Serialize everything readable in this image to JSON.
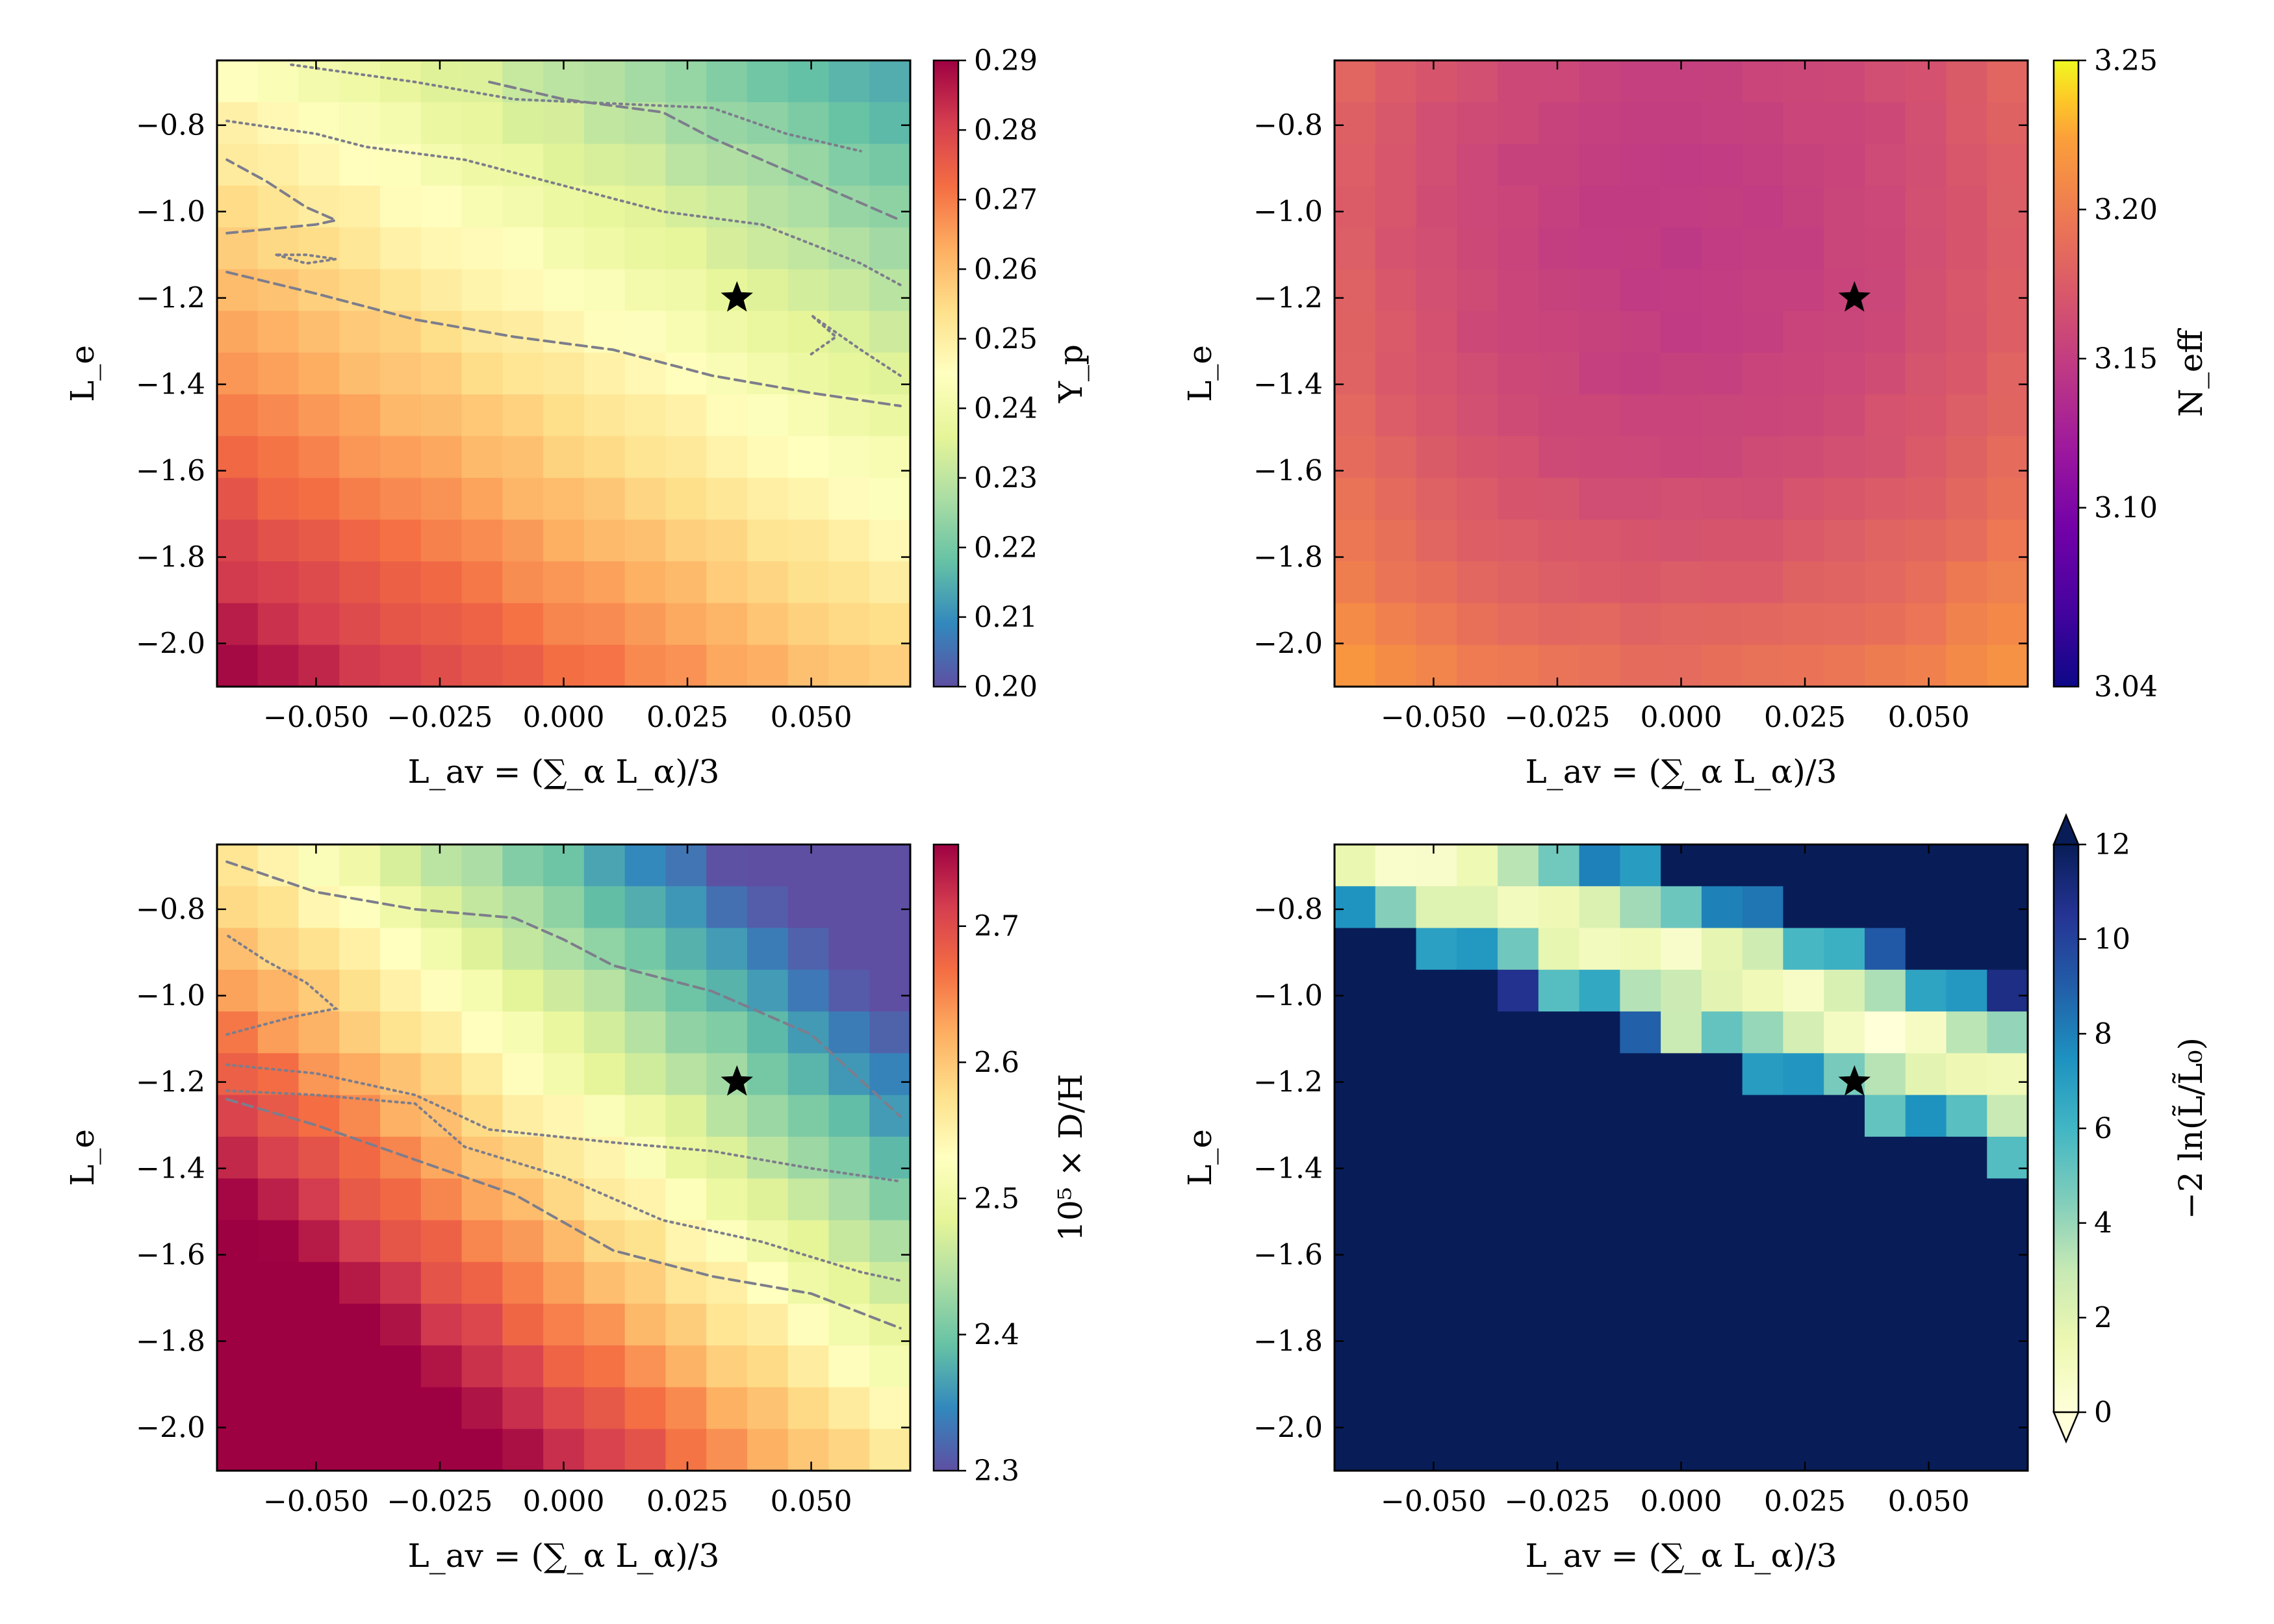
{
  "figure": {
    "star_marker": {
      "x": 0.035,
      "y": -1.2
    }
  },
  "chart_data": [
    {
      "type": "heatmap",
      "name": "yp",
      "xlabel": "L_av = (∑_α L_α)/3",
      "ylabel": "L_e",
      "colorbar_label": "Y_p",
      "cmap": "spectral",
      "clim": [
        0.2,
        0.29
      ],
      "colorbar_ticks": [
        0.2,
        0.21,
        0.22,
        0.23,
        0.24,
        0.25,
        0.26,
        0.27,
        0.28,
        0.29
      ],
      "colorbar_tick_labels": [
        "0.20",
        "0.21",
        "0.22",
        "0.23",
        "0.24",
        "0.25",
        "0.26",
        "0.27",
        "0.28",
        "0.29"
      ],
      "x_range": [
        -0.07,
        0.07
      ],
      "y_range": [
        -2.1,
        -0.65
      ],
      "x_ticks": [
        -0.05,
        -0.025,
        0.0,
        0.025,
        0.05
      ],
      "x_tick_labels": [
        "−0.050",
        "−0.025",
        "0.000",
        "0.025",
        "0.050"
      ],
      "y_ticks": [
        -0.8,
        -1.0,
        -1.2,
        -1.4,
        -1.6,
        -1.8,
        -2.0
      ],
      "y_tick_labels": [
        "−0.8",
        "−1.0",
        "−1.2",
        "−1.4",
        "−1.6",
        "−1.8",
        "−2.0"
      ],
      "grid_cols": 17,
      "grid_rows": 15,
      "model": {
        "form": "linear",
        "a": 0.2455,
        "b": -0.24,
        "c": -0.0315,
        "y0": -1.2,
        "noise": 0.0008,
        "clip": [
          0.2,
          0.29
        ]
      },
      "contours": [
        {
          "style": "dashed",
          "points": [
            [
              -0.068,
              -1.05
            ],
            [
              -0.05,
              -1.03
            ],
            [
              -0.046,
              -1.02
            ],
            [
              -0.052,
              -0.99
            ],
            [
              -0.06,
              -0.93
            ],
            [
              -0.068,
              -0.88
            ]
          ]
        },
        {
          "style": "dashed",
          "points": [
            [
              -0.068,
              -1.14
            ],
            [
              -0.05,
              -1.19
            ],
            [
              -0.03,
              -1.25
            ],
            [
              -0.01,
              -1.29
            ],
            [
              0.01,
              -1.32
            ],
            [
              0.03,
              -1.38
            ],
            [
              0.05,
              -1.42
            ],
            [
              0.068,
              -1.45
            ]
          ]
        },
        {
          "style": "dashed",
          "points": [
            [
              -0.015,
              -0.7
            ],
            [
              0.0,
              -0.74
            ],
            [
              0.02,
              -0.77
            ],
            [
              0.03,
              -0.83
            ],
            [
              0.04,
              -0.88
            ],
            [
              0.06,
              -0.98
            ],
            [
              0.068,
              -1.02
            ]
          ]
        },
        {
          "style": "dotted",
          "points": [
            [
              -0.058,
              -1.1
            ],
            [
              -0.052,
              -1.12
            ],
            [
              -0.046,
              -1.11
            ],
            [
              -0.052,
              -1.1
            ],
            [
              -0.058,
              -1.1
            ]
          ]
        },
        {
          "style": "dotted",
          "points": [
            [
              -0.068,
              -0.79
            ],
            [
              -0.05,
              -0.82
            ],
            [
              -0.04,
              -0.85
            ],
            [
              -0.02,
              -0.88
            ],
            [
              0.0,
              -0.94
            ],
            [
              0.02,
              -1.0
            ],
            [
              0.04,
              -1.03
            ],
            [
              0.06,
              -1.12
            ],
            [
              0.068,
              -1.17
            ]
          ]
        },
        {
          "style": "dotted",
          "points": [
            [
              -0.055,
              -0.66
            ],
            [
              -0.03,
              -0.7
            ],
            [
              -0.01,
              -0.74
            ],
            [
              0.03,
              -0.76
            ],
            [
              0.045,
              -0.82
            ],
            [
              0.06,
              -0.86
            ]
          ]
        },
        {
          "style": "dotted",
          "points": [
            [
              0.05,
              -1.33
            ],
            [
              0.055,
              -1.29
            ],
            [
              0.05,
              -1.24
            ],
            [
              0.06,
              -1.32
            ],
            [
              0.068,
              -1.38
            ]
          ]
        }
      ]
    },
    {
      "type": "heatmap",
      "name": "neff",
      "xlabel": "L_av = (∑_α L_α)/3",
      "ylabel": "L_e",
      "colorbar_label": "N_eff",
      "cmap": "plasma",
      "clim": [
        3.04,
        3.25
      ],
      "colorbar_ticks": [
        3.1,
        3.15,
        3.2,
        3.25
      ],
      "colorbar_tick_labels": [
        "3.10",
        "3.15",
        "3.20",
        "3.25"
      ],
      "colorbar_bottom_label": "3.04",
      "x_range": [
        -0.07,
        0.07
      ],
      "y_range": [
        -2.1,
        -0.65
      ],
      "x_ticks": [
        -0.05,
        -0.025,
        0.0,
        0.025,
        0.05
      ],
      "x_tick_labels": [
        "−0.050",
        "−0.025",
        "0.000",
        "0.025",
        "0.050"
      ],
      "y_ticks": [
        -0.8,
        -1.0,
        -1.2,
        -1.4,
        -1.6,
        -1.8,
        -2.0
      ],
      "y_tick_labels": [
        "−0.8",
        "−1.0",
        "−1.2",
        "−1.4",
        "−1.6",
        "−1.8",
        "−2.0"
      ],
      "grid_cols": 17,
      "grid_rows": 15,
      "model": {
        "form": "bowl",
        "base": 3.148,
        "qy": 0.04,
        "y0": -1.05,
        "qx": 6.5,
        "noise": 0.002,
        "clip": [
          3.13,
          3.25
        ]
      },
      "contours": []
    },
    {
      "type": "heatmap",
      "name": "dh",
      "xlabel": "L_av = (∑_α L_α)/3",
      "ylabel": "L_e",
      "colorbar_label": "10⁵ × D/H",
      "cmap": "spectral",
      "clim": [
        2.3,
        2.76
      ],
      "colorbar_ticks": [
        2.3,
        2.4,
        2.5,
        2.6,
        2.7
      ],
      "colorbar_tick_labels": [
        "2.3",
        "2.4",
        "2.5",
        "2.6",
        "2.7"
      ],
      "x_range": [
        -0.07,
        0.07
      ],
      "y_range": [
        -2.1,
        -0.65
      ],
      "x_ticks": [
        -0.05,
        -0.025,
        0.0,
        0.025,
        0.05
      ],
      "x_tick_labels": [
        "−0.050",
        "−0.025",
        "0.000",
        "0.025",
        "0.050"
      ],
      "y_ticks": [
        -0.8,
        -1.0,
        -1.2,
        -1.4,
        -1.6,
        -1.8,
        -2.0
      ],
      "y_tick_labels": [
        "−0.8",
        "−1.0",
        "−1.2",
        "−1.4",
        "−1.6",
        "−1.8",
        "−2.0"
      ],
      "grid_cols": 17,
      "grid_rows": 15,
      "model": {
        "form": "linear",
        "a": 2.53,
        "b": -2.6,
        "c": -0.25,
        "y0": -1.25,
        "noise": 0.006,
        "clip": [
          2.3,
          2.76
        ]
      },
      "contours": [
        {
          "style": "dashed",
          "points": [
            [
              -0.068,
              -0.69
            ],
            [
              -0.05,
              -0.76
            ],
            [
              -0.03,
              -0.8
            ],
            [
              -0.01,
              -0.82
            ],
            [
              0.0,
              -0.87
            ],
            [
              0.01,
              -0.93
            ],
            [
              0.03,
              -0.99
            ],
            [
              0.05,
              -1.09
            ],
            [
              0.068,
              -1.28
            ]
          ]
        },
        {
          "style": "dashed",
          "points": [
            [
              -0.068,
              -1.24
            ],
            [
              -0.05,
              -1.3
            ],
            [
              -0.03,
              -1.38
            ],
            [
              -0.01,
              -1.46
            ],
            [
              0.01,
              -1.59
            ],
            [
              0.03,
              -1.65
            ],
            [
              0.05,
              -1.69
            ],
            [
              0.068,
              -1.77
            ]
          ]
        },
        {
          "style": "dotted",
          "points": [
            [
              -0.068,
              -1.09
            ],
            [
              -0.055,
              -1.05
            ],
            [
              -0.046,
              -1.03
            ],
            [
              -0.052,
              -0.97
            ],
            [
              -0.06,
              -0.92
            ],
            [
              -0.068,
              -0.86
            ]
          ]
        },
        {
          "style": "dotted",
          "points": [
            [
              -0.068,
              -1.16
            ],
            [
              -0.05,
              -1.18
            ],
            [
              -0.03,
              -1.23
            ],
            [
              -0.015,
              -1.31
            ],
            [
              0.01,
              -1.34
            ],
            [
              0.03,
              -1.36
            ],
            [
              0.05,
              -1.4
            ],
            [
              0.068,
              -1.43
            ]
          ]
        },
        {
          "style": "dotted",
          "points": [
            [
              -0.068,
              -1.22
            ],
            [
              -0.05,
              -1.23
            ],
            [
              -0.03,
              -1.25
            ],
            [
              -0.02,
              -1.35
            ],
            [
              0.0,
              -1.42
            ],
            [
              0.02,
              -1.52
            ],
            [
              0.04,
              -1.57
            ],
            [
              0.06,
              -1.64
            ],
            [
              0.068,
              -1.66
            ]
          ]
        }
      ]
    },
    {
      "type": "heatmap",
      "name": "lnL",
      "xlabel": "L_av = (∑_α L_α)/3",
      "ylabel": "L_e",
      "colorbar_label": "−2 ln(L̃/L̃₀)",
      "cmap": "ylgnbu",
      "clim": [
        0,
        12
      ],
      "colorbar_ticks": [
        0,
        2,
        4,
        6,
        8,
        10,
        12
      ],
      "colorbar_tick_labels": [
        "0",
        "2",
        "4",
        "6",
        "8",
        "10",
        "12"
      ],
      "x_range": [
        -0.07,
        0.07
      ],
      "y_range": [
        -2.1,
        -0.65
      ],
      "x_ticks": [
        -0.05,
        -0.025,
        0.0,
        0.025,
        0.05
      ],
      "x_tick_labels": [
        "−0.050",
        "−0.025",
        "0.000",
        "0.025",
        "0.050"
      ],
      "y_ticks": [
        -0.8,
        -1.0,
        -1.2,
        -1.4,
        -1.6,
        -1.8,
        -2.0
      ],
      "y_tick_labels": [
        "−0.8",
        "−1.0",
        "−1.2",
        "−1.4",
        "−1.6",
        "−1.8",
        "−2.0"
      ],
      "grid_cols": 17,
      "grid_rows": 15,
      "model": {
        "form": "band",
        "center_y0": -0.92,
        "center_slope": -4.2,
        "width": 0.16,
        "clip": [
          0,
          12
        ]
      },
      "contours": []
    }
  ]
}
